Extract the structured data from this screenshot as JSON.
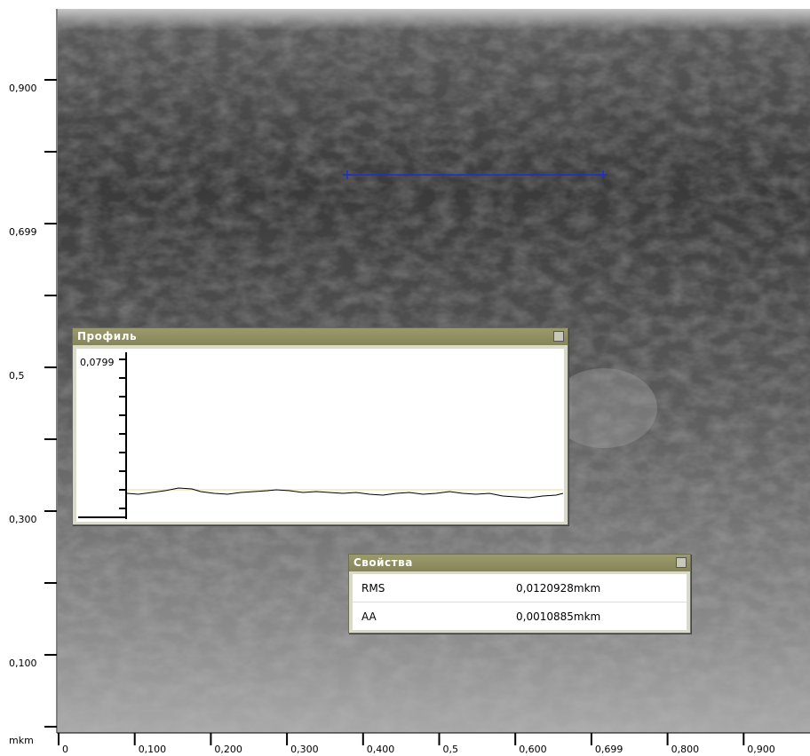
{
  "image_view": {
    "unit": "mkm",
    "y_labels": [
      "0,900",
      "0,699",
      "0,5",
      "0,300",
      "0,100"
    ],
    "x_labels": [
      "0",
      "0,100",
      "0,200",
      "0,300",
      "0,400",
      "0,5",
      "0,600",
      "0,699",
      "0,800",
      "0,900"
    ]
  },
  "profile_window": {
    "title": "Профиль",
    "y_label": "0,0799"
  },
  "properties_window": {
    "title": "Свойства",
    "rows": [
      [
        "RMS",
        "0,0120928mkm"
      ],
      [
        "AA",
        "0,0010885mkm"
      ]
    ]
  }
}
